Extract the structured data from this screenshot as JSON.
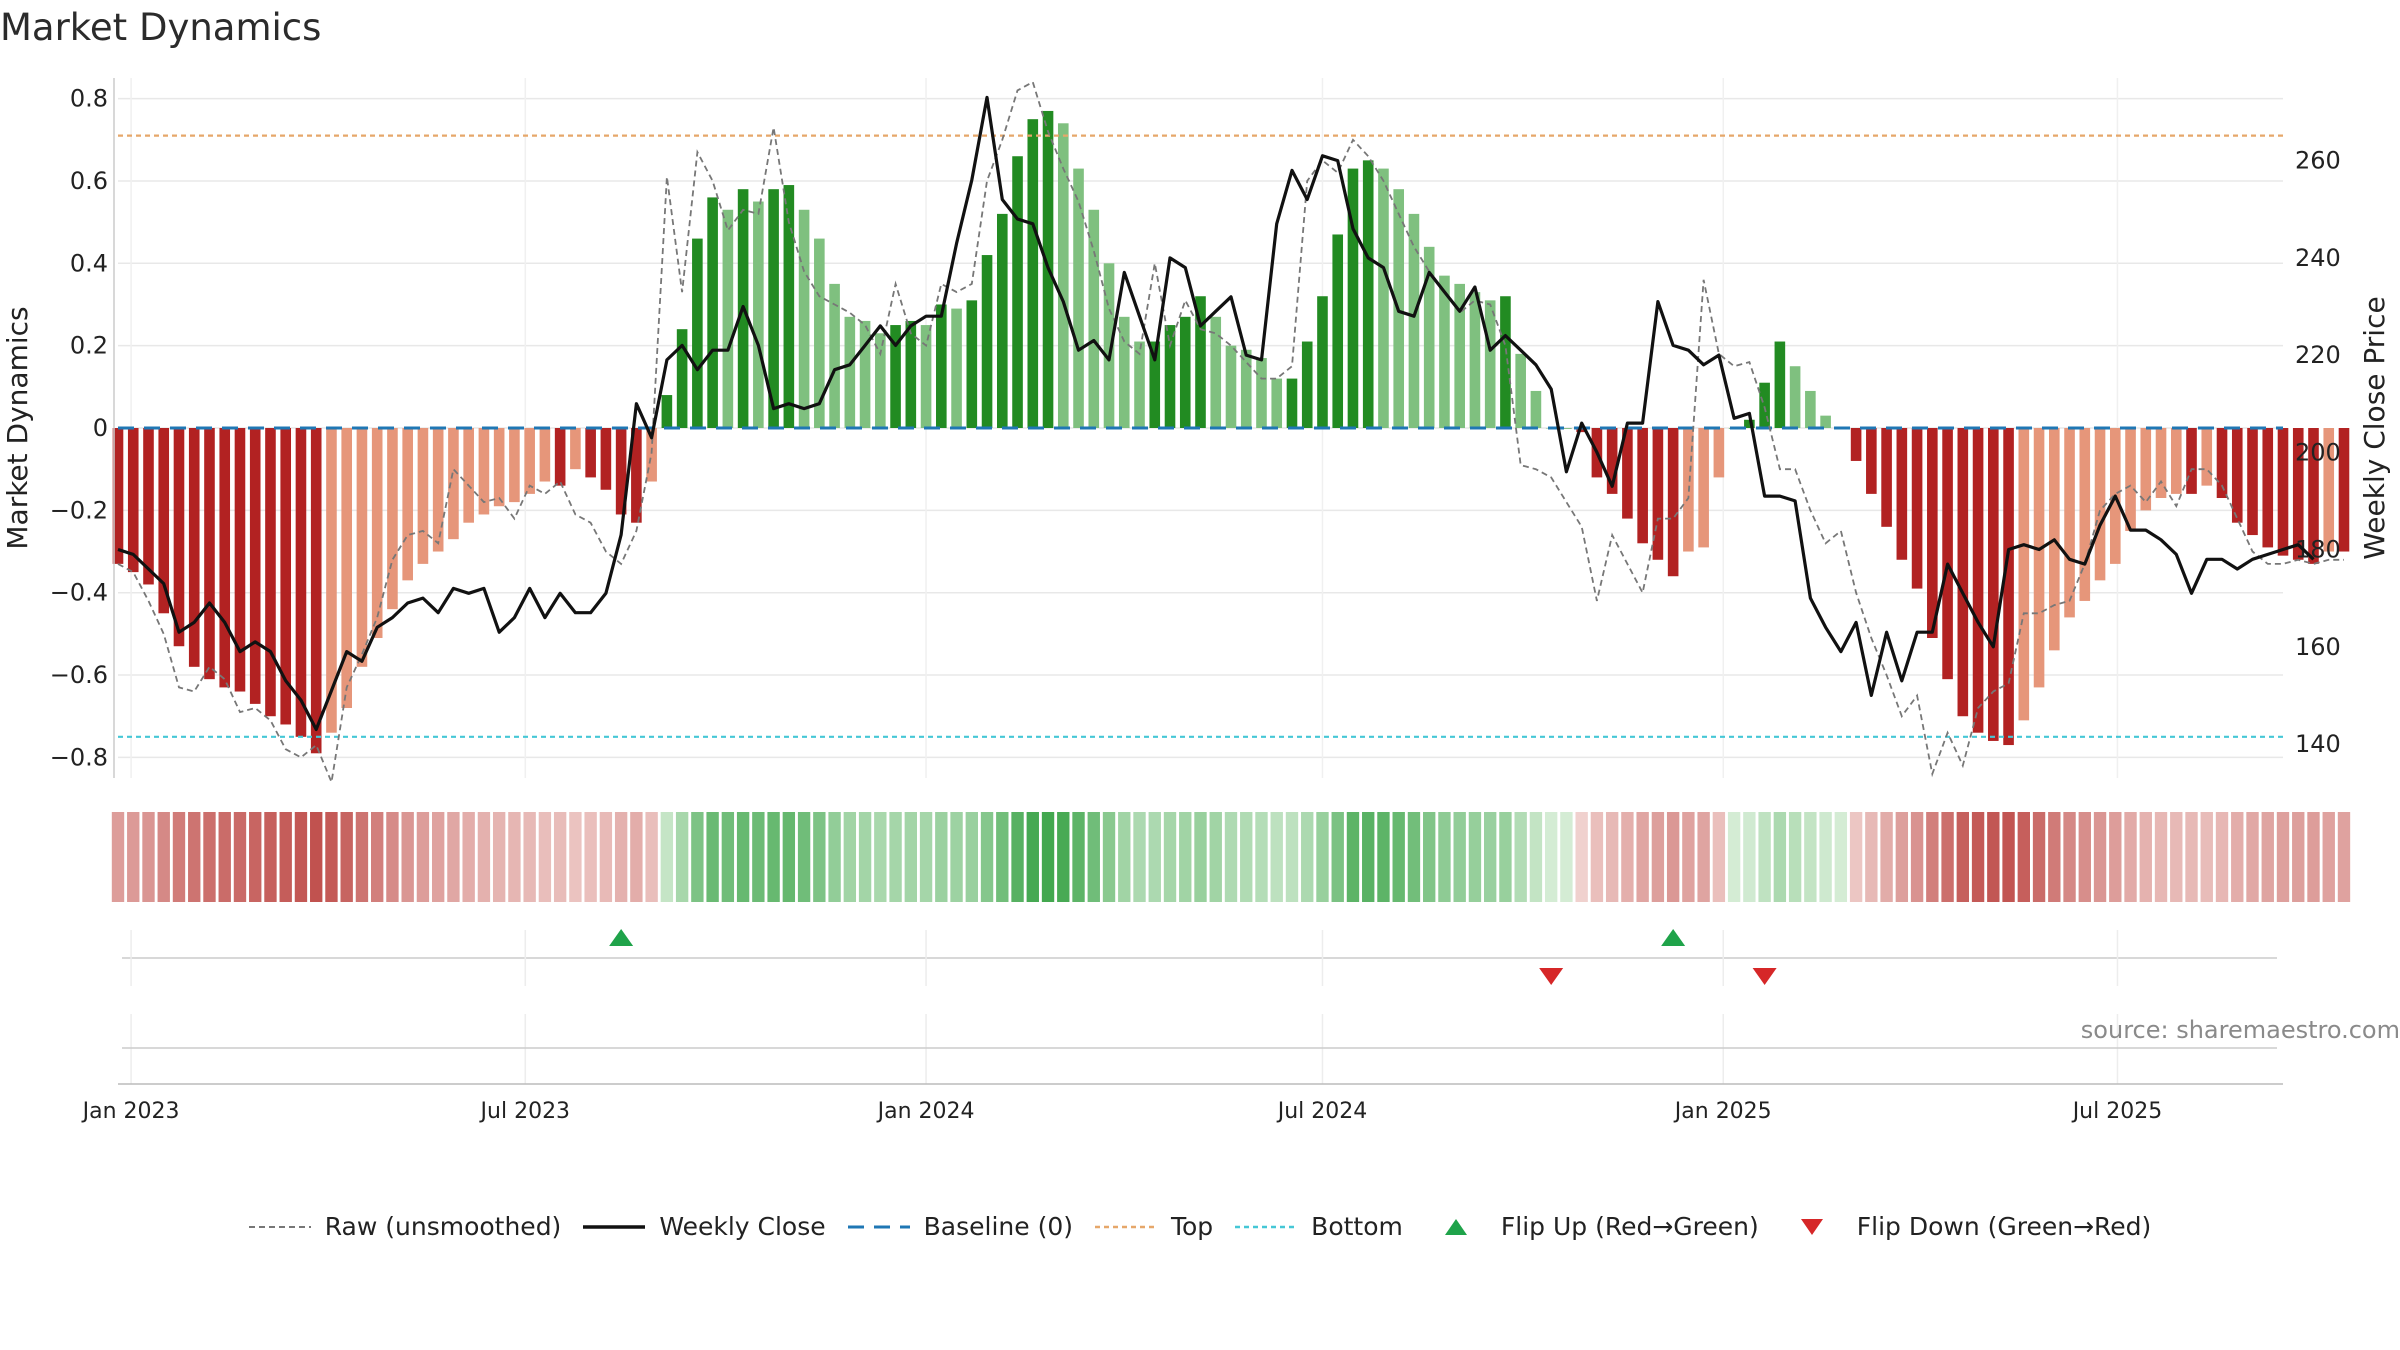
{
  "title": "Market Dynamics",
  "source": "source: sharemaestro.com",
  "colors": {
    "strong_green": "#228b22",
    "light_green": "#7fc07f",
    "strong_red": "#b22222",
    "light_red": "#e6967a",
    "weekly_close": "#111111",
    "raw": "#777777",
    "baseline": "#1f77b4",
    "top": "#e6a76a",
    "bottom": "#45c7d6",
    "flip_up": "#1fa34a",
    "flip_down": "#d62728"
  },
  "chart_data": {
    "type": "bar",
    "title": "Market Dynamics",
    "y_label": "Market Dynamics",
    "y2_label": "Weekly Close Price",
    "y_ticks": [
      0.8,
      0.6,
      0.4,
      0.2,
      0,
      -0.2,
      -0.4,
      -0.6,
      -0.8
    ],
    "y_tick_labels": [
      "0.8",
      "0.6",
      "0.4",
      "0.2",
      "0",
      "−0.2",
      "−0.4",
      "−0.6",
      "−0.8"
    ],
    "y2_ticks": [
      260,
      240,
      220,
      200,
      180,
      160,
      140
    ],
    "y2_tick_labels": [
      "260",
      "240",
      "220",
      "200",
      "180",
      "160",
      "140"
    ],
    "ylim": [
      -0.85,
      0.85
    ],
    "y2lim": [
      133,
      277
    ],
    "x_range": [
      "2022-12-26",
      "2025-09-15"
    ],
    "x_ticks": [
      "2023-01-01",
      "2023-07-01",
      "2024-01-01",
      "2024-07-01",
      "2025-01-01",
      "2025-07-01"
    ],
    "x_tick_labels": [
      "Jan 2023",
      "Jul 2023",
      "Jan 2024",
      "Jul 2024",
      "Jan 2025",
      "Jul 2025"
    ],
    "top_line": 0.71,
    "bottom_line": -0.75,
    "grid": true,
    "legend_position": "bottom-center",
    "start_date": "2022-12-26",
    "week_step_days": 7,
    "series": {
      "smoothed": [
        -0.33,
        -0.35,
        -0.38,
        -0.45,
        -0.53,
        -0.58,
        -0.61,
        -0.63,
        -0.64,
        -0.67,
        -0.7,
        -0.72,
        -0.75,
        -0.79,
        -0.74,
        -0.68,
        -0.58,
        -0.51,
        -0.44,
        -0.37,
        -0.33,
        -0.3,
        -0.27,
        -0.23,
        -0.21,
        -0.19,
        -0.18,
        -0.16,
        -0.13,
        -0.14,
        -0.1,
        -0.12,
        -0.15,
        -0.21,
        -0.23,
        -0.13,
        0.08,
        0.24,
        0.46,
        0.56,
        0.53,
        0.58,
        0.55,
        0.58,
        0.59,
        0.53,
        0.46,
        0.35,
        0.27,
        0.26,
        0.23,
        0.25,
        0.26,
        0.25,
        0.3,
        0.29,
        0.31,
        0.42,
        0.52,
        0.66,
        0.75,
        0.77,
        0.74,
        0.63,
        0.53,
        0.4,
        0.27,
        0.21,
        0.21,
        0.25,
        0.27,
        0.32,
        0.27,
        0.2,
        0.19,
        0.17,
        0.12,
        0.12,
        0.21,
        0.32,
        0.47,
        0.63,
        0.65,
        0.63,
        0.58,
        0.52,
        0.44,
        0.37,
        0.35,
        0.33,
        0.31,
        0.32,
        0.18,
        0.09,
        0.0,
        0.0,
        -0.01,
        -0.12,
        -0.16,
        -0.22,
        -0.28,
        -0.32,
        -0.36,
        -0.3,
        -0.29,
        -0.12,
        0.0,
        0.02,
        0.11,
        0.21,
        0.15,
        0.09,
        0.03,
        0.0,
        -0.08,
        -0.16,
        -0.24,
        -0.32,
        -0.39,
        -0.51,
        -0.61,
        -0.7,
        -0.74,
        -0.76,
        -0.77,
        -0.71,
        -0.63,
        -0.54,
        -0.46,
        -0.42,
        -0.37,
        -0.33,
        -0.25,
        -0.2,
        -0.17,
        -0.16,
        -0.16,
        -0.14,
        -0.17,
        -0.23,
        -0.26,
        -0.29,
        -0.31,
        -0.32,
        -0.33,
        -0.3,
        -0.3
      ],
      "raw": [
        -0.33,
        -0.35,
        -0.42,
        -0.5,
        -0.63,
        -0.64,
        -0.58,
        -0.61,
        -0.69,
        -0.68,
        -0.71,
        -0.78,
        -0.8,
        -0.77,
        -0.86,
        -0.63,
        -0.55,
        -0.46,
        -0.32,
        -0.26,
        -0.25,
        -0.28,
        -0.1,
        -0.14,
        -0.18,
        -0.17,
        -0.22,
        -0.14,
        -0.16,
        -0.13,
        -0.21,
        -0.23,
        -0.3,
        -0.33,
        -0.25,
        -0.06,
        0.61,
        0.33,
        0.67,
        0.6,
        0.48,
        0.53,
        0.52,
        0.73,
        0.5,
        0.38,
        0.32,
        0.3,
        0.28,
        0.25,
        0.18,
        0.35,
        0.23,
        0.2,
        0.35,
        0.33,
        0.35,
        0.6,
        0.7,
        0.82,
        0.84,
        0.72,
        0.63,
        0.55,
        0.43,
        0.29,
        0.21,
        0.18,
        0.4,
        0.2,
        0.31,
        0.24,
        0.23,
        0.2,
        0.16,
        0.12,
        0.12,
        0.15,
        0.6,
        0.65,
        0.62,
        0.7,
        0.66,
        0.6,
        0.52,
        0.44,
        0.38,
        0.33,
        0.28,
        0.31,
        0.3,
        0.2,
        -0.09,
        -0.1,
        -0.12,
        -0.18,
        -0.24,
        -0.42,
        -0.26,
        -0.33,
        -0.4,
        -0.22,
        -0.22,
        -0.17,
        0.36,
        0.18,
        0.15,
        0.16,
        0.05,
        -0.1,
        -0.1,
        -0.2,
        -0.28,
        -0.25,
        -0.4,
        -0.51,
        -0.6,
        -0.7,
        -0.65,
        -0.84,
        -0.74,
        -0.82,
        -0.68,
        -0.64,
        -0.62,
        -0.45,
        -0.45,
        -0.43,
        -0.42,
        -0.33,
        -0.2,
        -0.16,
        -0.14,
        -0.18,
        -0.13,
        -0.19,
        -0.1,
        -0.1,
        -0.14,
        -0.22,
        -0.3,
        -0.33,
        -0.33,
        -0.32,
        -0.33,
        -0.32,
        -0.32
      ],
      "weekly_close": [
        180,
        179,
        176,
        173,
        163,
        165,
        169,
        165,
        159,
        161,
        159,
        153,
        149,
        143,
        151,
        159,
        157,
        164,
        166,
        169,
        170,
        167,
        172,
        171,
        172,
        163,
        166,
        172,
        166,
        171,
        167,
        167,
        171,
        183,
        210,
        203,
        219,
        222,
        217,
        221,
        221,
        230,
        222,
        209,
        210,
        209,
        210,
        217,
        218,
        222,
        226,
        222,
        226,
        228,
        228,
        243,
        256,
        273,
        252,
        248,
        247,
        238,
        231,
        221,
        223,
        219,
        237,
        228,
        219,
        240,
        238,
        226,
        229,
        232,
        220,
        219,
        247,
        258,
        252,
        261,
        260,
        246,
        240,
        238,
        229,
        228,
        237,
        233,
        229,
        234,
        221,
        224,
        221,
        218,
        213,
        196,
        206,
        200,
        193,
        206,
        206,
        231,
        222,
        221,
        218,
        220,
        207,
        208,
        191,
        191,
        190,
        170,
        164,
        159,
        165,
        150,
        163,
        153,
        163,
        163,
        177,
        171,
        165,
        160,
        180,
        181,
        180,
        182,
        178,
        177,
        185,
        191,
        184,
        184,
        182,
        179,
        171,
        178,
        178,
        176,
        178,
        179,
        180,
        181,
        178
      ],
      "flip_up": [
        "2023-08-14",
        "2024-12-09"
      ],
      "flip_down": [
        "2024-10-14",
        "2025-01-20"
      ]
    },
    "legend": [
      "Raw (unsmoothed)",
      "Weekly Close",
      "Baseline (0)",
      "Top",
      "Bottom",
      "Flip Up (Red→Green)",
      "Flip Down (Green→Red)"
    ]
  }
}
